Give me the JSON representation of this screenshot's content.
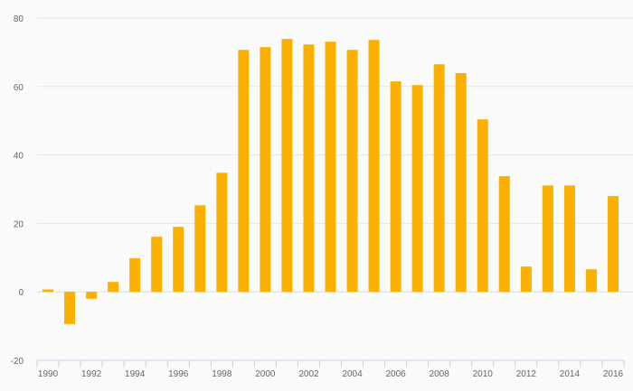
{
  "chart_data": {
    "type": "bar",
    "title": "",
    "xlabel": "",
    "ylabel": "",
    "categories": [
      "1990",
      "1991",
      "1992",
      "1993",
      "1994",
      "1995",
      "1996",
      "1997",
      "1998",
      "1999",
      "2000",
      "2001",
      "2002",
      "2003",
      "2004",
      "2005",
      "2006",
      "2007",
      "2008",
      "2009",
      "2010",
      "2011",
      "2012",
      "2013",
      "2014",
      "2015",
      "2016"
    ],
    "values": [
      0.7,
      -9.4,
      -2.0,
      2.9,
      9.8,
      16.1,
      19.0,
      25.3,
      34.8,
      70.7,
      71.5,
      73.9,
      72.3,
      73.1,
      70.7,
      73.6,
      61.5,
      60.4,
      66.5,
      63.9,
      50.4,
      33.8,
      7.4,
      31.1,
      31.1,
      6.6,
      28.0
    ],
    "ylim": [
      -20,
      80
    ],
    "yticks": [
      "-20",
      "0",
      "20",
      "40",
      "60",
      "80"
    ],
    "xtick_labels": [
      "1990",
      "1992",
      "1994",
      "1996",
      "1998",
      "2000",
      "2002",
      "2004",
      "2006",
      "2008",
      "2010",
      "2012",
      "2014",
      "2016"
    ],
    "grid": true,
    "bar_color": "#fbb000",
    "grid_color": "#e6e6e6",
    "axis_color": "#c7d3ec"
  }
}
